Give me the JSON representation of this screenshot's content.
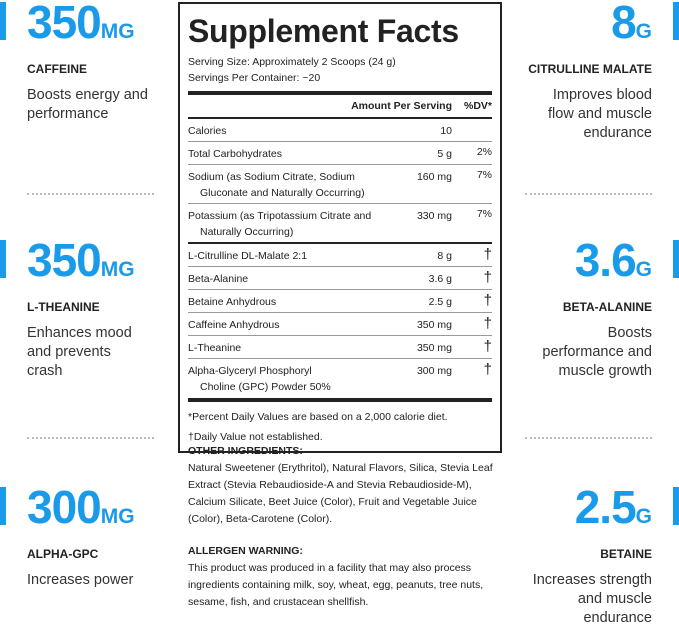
{
  "accent": "#1a9bea",
  "left_stats": [
    {
      "amount": "350",
      "unit": "MG",
      "name": "CAFFEINE",
      "desc": "Boosts energy and performance"
    },
    {
      "amount": "350",
      "unit": "MG",
      "name": "L-THEANINE",
      "desc": "Enhances mood and prevents crash"
    },
    {
      "amount": "300",
      "unit": "MG",
      "name": "ALPHA-GPC",
      "desc": "Increases power"
    }
  ],
  "right_stats": [
    {
      "amount": "8",
      "unit": "G",
      "name": "CITRULLINE MALATE",
      "desc": "Improves blood flow and muscle endurance"
    },
    {
      "amount": "3.6",
      "unit": "G",
      "name": "BETA-ALANINE",
      "desc": "Boosts performance and muscle growth"
    },
    {
      "amount": "2.5",
      "unit": "G",
      "name": "BETAINE",
      "desc": "Increases strength and muscle endurance"
    }
  ],
  "facts": {
    "title": "Supplement Facts",
    "serving_size": "Serving Size: Approximately 2 Scoops (24 g)",
    "servings": "Servings Per Container: ~20",
    "col_amount": "Amount Per Serving",
    "col_dv": "%DV*",
    "rows": [
      {
        "name": "Calories",
        "sub": "",
        "amount": "10",
        "dv": ""
      },
      {
        "name": "Total Carbohydrates",
        "sub": "",
        "amount": "5 g",
        "dv": "2%"
      },
      {
        "name": "Sodium (as Sodium Citrate, Sodium",
        "sub": "Gluconate and Naturally Occurring)",
        "amount": "160 mg",
        "dv": "7%"
      },
      {
        "name": "Potassium (as Tripotassium Citrate and",
        "sub": "Naturally Occurring)",
        "amount": "330 mg",
        "dv": "7%"
      },
      {
        "name": "L-Citrulline DL-Malate 2:1",
        "sub": "",
        "amount": "8 g",
        "dv": "†"
      },
      {
        "name": "Beta-Alanine",
        "sub": "",
        "amount": "3.6 g",
        "dv": "†"
      },
      {
        "name": "Betaine Anhydrous",
        "sub": "",
        "amount": "2.5 g",
        "dv": "†"
      },
      {
        "name": "Caffeine Anhydrous",
        "sub": "",
        "amount": "350 mg",
        "dv": "†"
      },
      {
        "name": "L-Theanine",
        "sub": "",
        "amount": "350 mg",
        "dv": "†"
      },
      {
        "name": "Alpha-Glyceryl Phosphoryl",
        "sub": "Choline (GPC) Powder 50%",
        "amount": "300 mg",
        "dv": "†"
      }
    ],
    "footnote1": "*Percent Daily Values are based on a 2,000 calorie diet.",
    "footnote2": "†Daily Value not established."
  },
  "other_ingredients": {
    "heading": "OTHER INGREDIENTS:",
    "text": "Natural Sweetener (Erythritol), Natural Flavors, Silica, Stevia Leaf Extract (Stevia Rebaudioside-A and Stevia Rebaudioside-M), Calcium Silicate, Beet Juice (Color), Fruit and Vegetable Juice (Color), Beta-Carotene (Color)."
  },
  "allergen": {
    "heading": "ALLERGEN WARNING:",
    "text": "This product was produced in a facility that may also process ingredients containing milk, soy, wheat, egg, peanuts, tree nuts, sesame, fish, and crustacean shellfish."
  }
}
